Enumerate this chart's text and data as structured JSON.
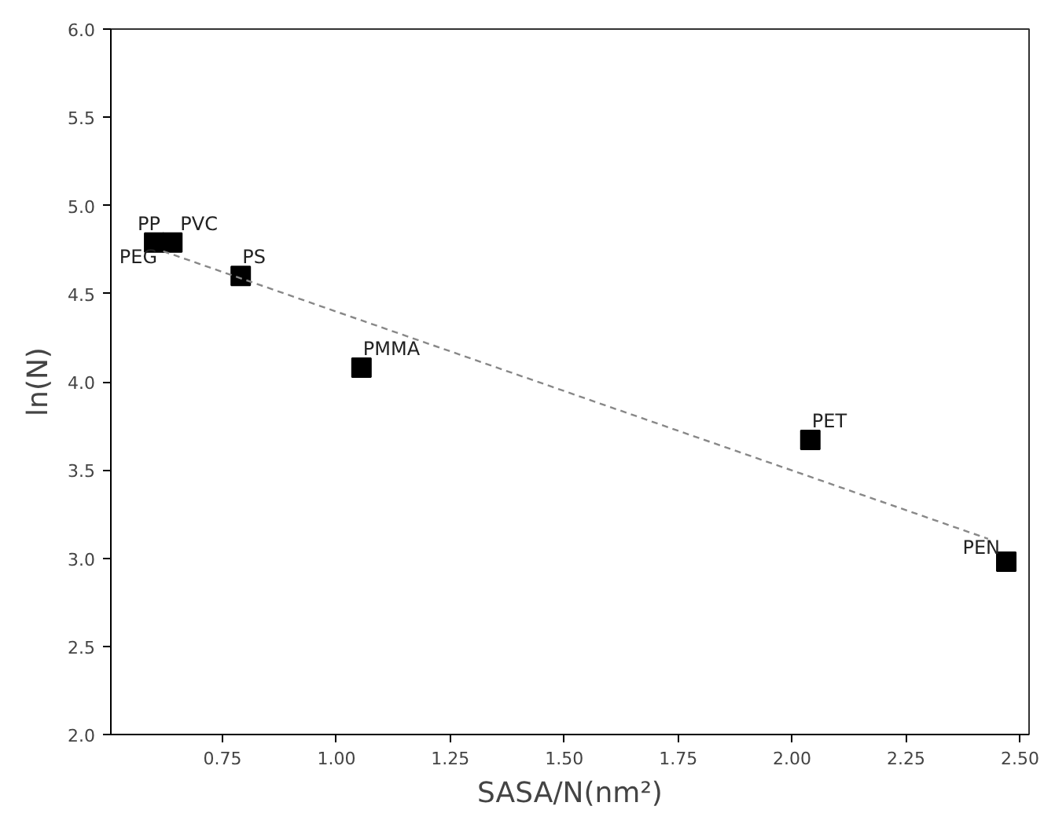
{
  "chart_data": {
    "type": "scatter",
    "xlabel": "SASA/N(nm²)",
    "ylabel": "ln(N)",
    "xlim": [
      0.505,
      2.52
    ],
    "ylim": [
      2.0,
      6.0
    ],
    "xticks": [
      {
        "value": 0.75,
        "label": "0.75"
      },
      {
        "value": 1.0,
        "label": "1.00"
      },
      {
        "value": 1.25,
        "label": "1.25"
      },
      {
        "value": 1.5,
        "label": "1.50"
      },
      {
        "value": 1.75,
        "label": "1.75"
      },
      {
        "value": 2.0,
        "label": "2.00"
      },
      {
        "value": 2.25,
        "label": "2.25"
      },
      {
        "value": 2.5,
        "label": "2.50"
      }
    ],
    "yticks": [
      {
        "value": 2.0,
        "label": "2.0"
      },
      {
        "value": 2.5,
        "label": "2.5"
      },
      {
        "value": 3.0,
        "label": "3.0"
      },
      {
        "value": 3.5,
        "label": "3.5"
      },
      {
        "value": 4.0,
        "label": "4.0"
      },
      {
        "value": 4.5,
        "label": "4.5"
      },
      {
        "value": 5.0,
        "label": "5.0"
      },
      {
        "value": 5.5,
        "label": "5.5"
      },
      {
        "value": 6.0,
        "label": "6.0"
      }
    ],
    "grid": false,
    "marker": "square",
    "series": [
      {
        "color": "#000000",
        "x": [
          0.6,
          0.64,
          0.79,
          1.055,
          2.04,
          2.47
        ],
        "values": [
          4.79,
          4.79,
          4.6,
          4.08,
          3.67,
          2.98
        ]
      },
      {
        "type": "line",
        "color": "#888888",
        "line_style": "dashed",
        "marker": "none",
        "x": [
          0.62,
          2.43
        ],
        "values": [
          4.74,
          3.11
        ]
      }
    ],
    "annotations": [
      {
        "text": "PP",
        "x": 0.6,
        "y": 4.79
      },
      {
        "text": "PVC",
        "x": 0.64,
        "y": 4.79
      },
      {
        "text": "PEG",
        "x": 0.6,
        "y": 4.79
      },
      {
        "text": "PS",
        "x": 0.79,
        "y": 4.6
      },
      {
        "text": "PMMA",
        "x": 1.055,
        "y": 4.08
      },
      {
        "text": "PET",
        "x": 2.04,
        "y": 3.67
      },
      {
        "text": "PEN",
        "x": 2.47,
        "y": 2.98
      }
    ]
  }
}
